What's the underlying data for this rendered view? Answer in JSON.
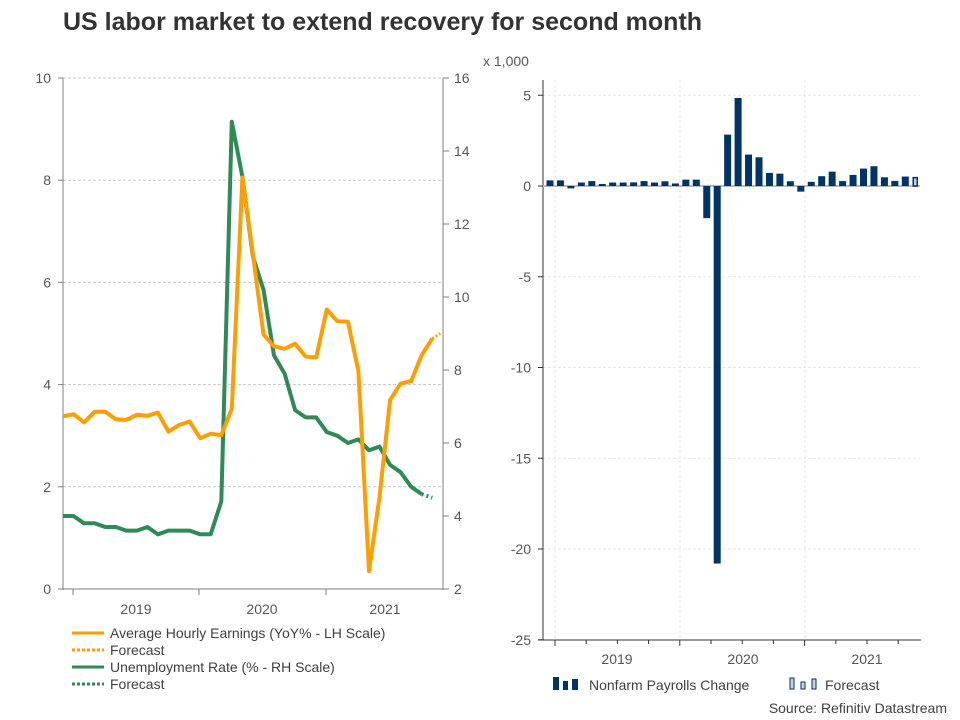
{
  "title": "US labor market to extend recovery for second month",
  "source": "Source: Refinitiv Datastream",
  "colors": {
    "earnings": "#ff9e00",
    "unemployment": "#2e8b57",
    "payrolls": "#003366",
    "forecast_fill": "#c9d3e0"
  },
  "chart_data": [
    {
      "type": "line",
      "title": "",
      "x": [
        "2018-12",
        "2019-01",
        "2019-02",
        "2019-03",
        "2019-04",
        "2019-05",
        "2019-06",
        "2019-07",
        "2019-08",
        "2019-09",
        "2019-10",
        "2019-11",
        "2019-12",
        "2020-01",
        "2020-02",
        "2020-03",
        "2020-04",
        "2020-05",
        "2020-06",
        "2020-07",
        "2020-08",
        "2020-09",
        "2020-10",
        "2020-11",
        "2020-12",
        "2021-01",
        "2021-02",
        "2021-03",
        "2021-04",
        "2021-05",
        "2021-06"
      ],
      "x_ticks": [
        "2019",
        "2020",
        "2021"
      ],
      "left_axis": {
        "label": "YoY% - LH Scale",
        "range": [
          0,
          10
        ],
        "ticks": [
          "0",
          "2",
          "4",
          "6",
          "8",
          "10"
        ]
      },
      "right_axis": {
        "label": "% - RH Scale",
        "range": [
          2,
          16
        ],
        "ticks": [
          "2",
          "4",
          "6",
          "8",
          "10",
          "12",
          "14",
          "16"
        ]
      },
      "grid": true,
      "series": [
        {
          "name": "Average Hourly Earnings (YoY% - LH Scale)",
          "axis": "left",
          "values": [
            3.38,
            3.42,
            3.26,
            3.47,
            3.47,
            3.32,
            3.31,
            3.41,
            3.39,
            3.45,
            3.08,
            3.21,
            3.28,
            2.95,
            3.04,
            3.01,
            3.53,
            8.05,
            6.55,
            4.98,
            4.75,
            4.7,
            4.8,
            4.55,
            4.53,
            5.47,
            5.24,
            5.23,
            4.26,
            0.35,
            null
          ],
          "forecast": {
            "from_index": 29,
            "values": [
              null,
              null,
              null,
              null,
              null,
              null,
              null,
              null,
              null,
              null,
              null,
              null,
              null,
              null,
              null,
              null,
              null,
              null,
              null,
              null,
              null,
              null,
              null,
              null,
              null,
              null,
              null,
              null,
              null,
              null,
              null
            ]
          }
        },
        {
          "name": "Unemployment Rate (% - RH Scale)",
          "axis": "right",
          "values": [
            4.0,
            4.0,
            3.8,
            3.8,
            3.7,
            3.7,
            3.6,
            3.6,
            3.7,
            3.5,
            3.6,
            3.6,
            3.6,
            3.5,
            3.5,
            4.4,
            14.8,
            13.3,
            11.1,
            10.2,
            8.4,
            7.9,
            6.9,
            6.7,
            6.7,
            6.3,
            6.2,
            6.0,
            6.1,
            5.8,
            5.9
          ]
        }
      ],
      "earnings_full": [
        3.38,
        3.42,
        3.26,
        3.47,
        3.47,
        3.32,
        3.31,
        3.41,
        3.39,
        3.45,
        3.08,
        3.21,
        3.28,
        2.95,
        3.04,
        3.01,
        3.53,
        8.05,
        6.55,
        4.98,
        4.75,
        4.7,
        4.8,
        4.55,
        4.53,
        5.47,
        5.24,
        5.23,
        4.26,
        0.35,
        1.8,
        3.7,
        4.02,
        4.07,
        4.58,
        4.9
      ],
      "earnings_forecast": 5.0,
      "unemployment_full": [
        4.0,
        4.0,
        3.8,
        3.8,
        3.7,
        3.7,
        3.6,
        3.6,
        3.7,
        3.5,
        3.6,
        3.6,
        3.6,
        3.5,
        3.5,
        4.4,
        14.8,
        13.3,
        11.1,
        10.2,
        8.4,
        7.9,
        6.9,
        6.7,
        6.7,
        6.3,
        6.2,
        6.0,
        6.1,
        5.8,
        5.9,
        5.4,
        5.2,
        4.8,
        4.6
      ],
      "unemployment_forecast": 4.5,
      "legend": [
        {
          "label": "Average Hourly Earnings (YoY% - LH Scale)",
          "style": "solid",
          "color": "#ff9e00"
        },
        {
          "label": "Forecast",
          "style": "dotted",
          "color": "#ff9e00"
        },
        {
          "label": "Unemployment Rate (% - RH Scale)",
          "style": "solid",
          "color": "#2e8b57"
        },
        {
          "label": "Forecast",
          "style": "dotted",
          "color": "#2e8b57"
        }
      ],
      "legend_position": "bottom-left"
    },
    {
      "type": "bar",
      "title": "",
      "unit_label": "x 1,000",
      "x_ticks": [
        "2019",
        "2020",
        "2021"
      ],
      "ylim": [
        -25,
        6
      ],
      "y_ticks": [
        "5",
        "0",
        "-5",
        "-10",
        "-15",
        "-20",
        "-25"
      ],
      "y_tick_values": [
        5,
        0,
        -5,
        -10,
        -15,
        -20,
        -25
      ],
      "grid": true,
      "series": [
        {
          "name": "Nonfarm Payrolls Change",
          "values": [
            0.31,
            0.31,
            -0.13,
            0.19,
            0.27,
            0.11,
            0.19,
            0.19,
            0.2,
            0.27,
            0.19,
            0.26,
            0.14,
            0.35,
            0.35,
            -1.77,
            -20.8,
            2.83,
            4.85,
            1.73,
            1.58,
            0.72,
            0.68,
            0.26,
            -0.31,
            0.23,
            0.54,
            0.79,
            0.27,
            0.61,
            0.96,
            1.09,
            0.48,
            0.28,
            0.52
          ]
        },
        {
          "name": "Forecast",
          "values": [
            0.46
          ],
          "forecast": true
        }
      ],
      "legend": [
        {
          "label": "Nonfarm Payrolls Change",
          "style": "bar"
        },
        {
          "label": "Forecast",
          "style": "bar-outline"
        }
      ],
      "legend_position": "bottom"
    }
  ]
}
